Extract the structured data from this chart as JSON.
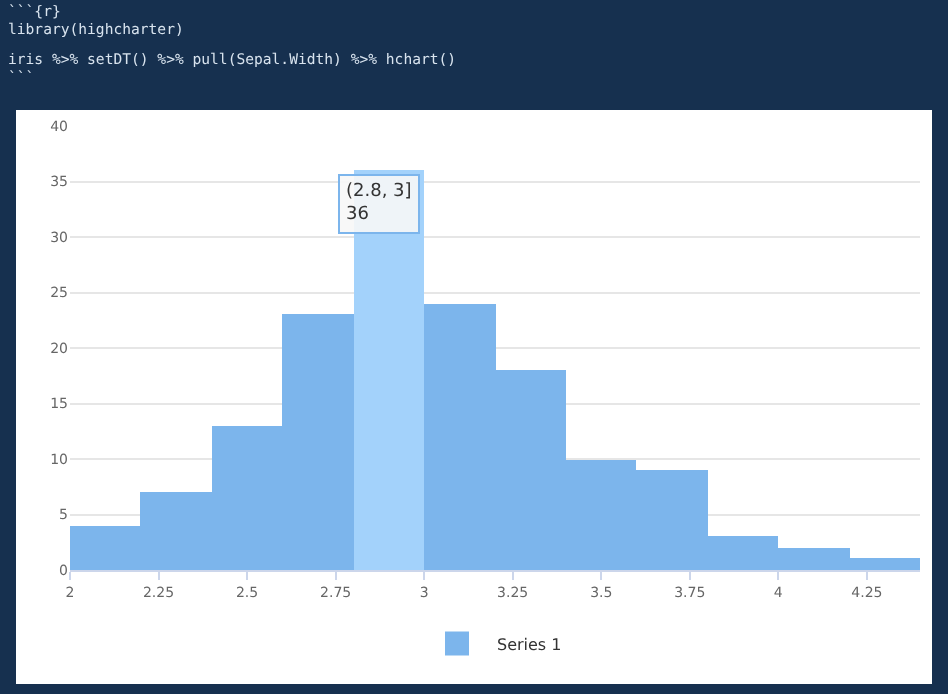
{
  "chart_data": {
    "type": "histogram",
    "bins": [
      2.0,
      2.2,
      2.4,
      2.6,
      2.8,
      3.0,
      3.2,
      3.4,
      3.6,
      3.8,
      4.0,
      4.2,
      4.4
    ],
    "series": [
      {
        "name": "Series 1",
        "color": "#7cb5ec",
        "values": [
          4,
          7,
          13,
          23,
          36,
          24,
          18,
          10,
          9,
          3,
          2,
          1
        ],
        "colors": [
          null,
          null,
          null,
          null,
          "#a3d2fb",
          null,
          null,
          null,
          null,
          null,
          null,
          null
        ]
      }
    ],
    "xlim": [
      2,
      4.4
    ],
    "xticks": [
      2,
      2.25,
      2.5,
      2.75,
      3,
      3.25,
      3.5,
      3.75,
      4,
      4.25
    ],
    "ylim": [
      0,
      40
    ],
    "yticks": [
      0,
      5,
      10,
      15,
      20,
      25,
      30,
      35,
      40
    ],
    "grid": "y",
    "legend": "bottom",
    "annotations": [
      "```{r}",
      "library(highcharter)",
      "iris %>% setDT() %>% pull(Sepal.Width) %>% hchart()",
      "```",
      {
        "text": "(2.8, 3]\n36",
        "x": 2.9,
        "y": 36
      }
    ]
  }
}
